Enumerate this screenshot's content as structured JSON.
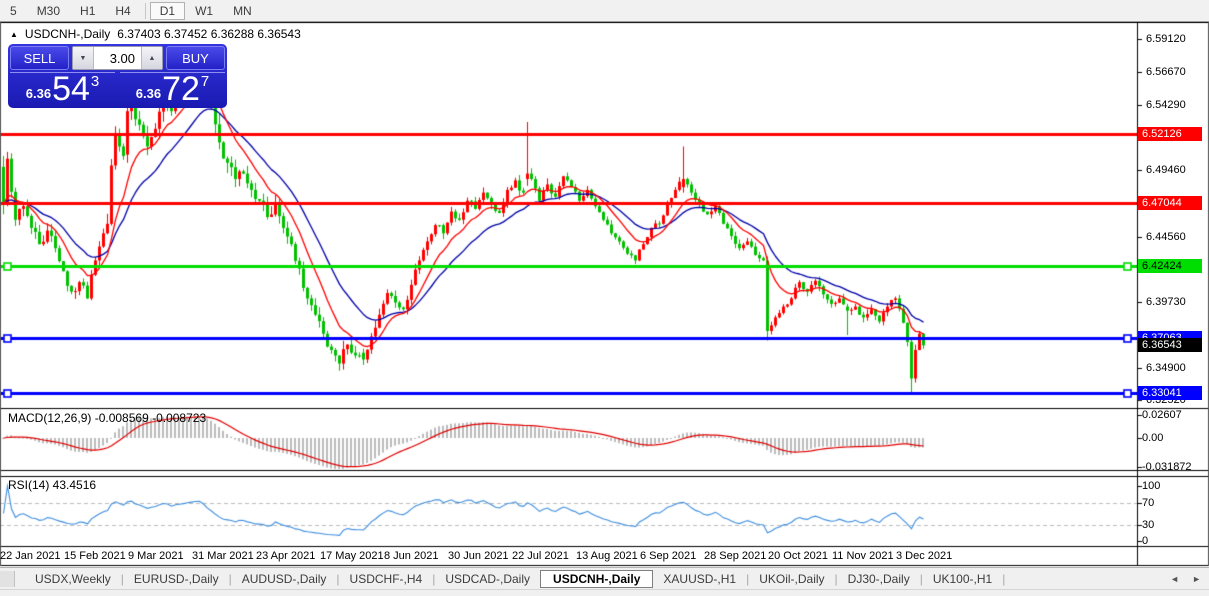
{
  "toolbar": {
    "groups": [
      [
        "5",
        "M30",
        "H1",
        "H4"
      ],
      [
        "D1",
        "W1",
        "MN"
      ]
    ],
    "active": "D1"
  },
  "chart": {
    "title": "USDCNH-,Daily",
    "ohlc_text": "6.37403 6.37452 6.36288 6.36543"
  },
  "icons": {
    "collapse": "▲",
    "spinner_down": "▼",
    "spinner_up": "▲",
    "tab_left": "◄",
    "tab_right": "►"
  },
  "trade_panel": {
    "sell_label": "SELL",
    "buy_label": "BUY",
    "volume": "3.00",
    "sell_price": {
      "prefix": "6.36",
      "big": "54",
      "sup": "3"
    },
    "buy_price": {
      "prefix": "6.36",
      "big": "72",
      "sup": "7"
    }
  },
  "indicators": {
    "macd_label": "MACD(12,26,9) -0.008569 -0.008723",
    "rsi_label": "RSI(14) 43.4516"
  },
  "tabs": {
    "items": [
      {
        "label": "USDX,Weekly",
        "active": false
      },
      {
        "label": "EURUSD-,Daily",
        "active": false
      },
      {
        "label": "AUDUSD-,Daily",
        "active": false
      },
      {
        "label": "USDCHF-,H4",
        "active": false
      },
      {
        "label": "USDCAD-,Daily",
        "active": false
      },
      {
        "label": "USDCNH-,Daily",
        "active": true
      },
      {
        "label": "XAUUSD-,H1",
        "active": false
      },
      {
        "label": "UKOil-,Daily",
        "active": false
      },
      {
        "label": "DJ30-,Daily",
        "active": false
      },
      {
        "label": "UK100-,H1",
        "active": false
      }
    ]
  },
  "chart_data": {
    "type": "candlestick",
    "symbol": "USDCNH-",
    "timeframe": "Daily",
    "current_ohlc": {
      "open": 6.37403,
      "high": 6.37452,
      "low": 6.36288,
      "close": 6.36543
    },
    "current_price": 6.36543,
    "bull_color": "#ff0000",
    "bear_color": "#00c000",
    "ma_fast_period": 10,
    "ma_slow_period": 21,
    "ma_fast_color": "#ff0000",
    "ma_slow_color": "#0000a8",
    "y_ticks": [
      "6.59120",
      "6.56670",
      "6.54290",
      "6.49460",
      "6.44560",
      "6.39730",
      "6.34900",
      "6.32520"
    ],
    "hlines": [
      {
        "price": 6.52126,
        "color": "#ff0000",
        "text_color": "#ffffff",
        "handles": false
      },
      {
        "price": 6.47044,
        "color": "#ff0000",
        "text_color": "#ffffff",
        "handles": false
      },
      {
        "price": 6.42424,
        "color": "#00dd00",
        "text_color": "#000000",
        "handles": true
      },
      {
        "price": 6.37063,
        "color": "#0000ff",
        "text_color": "#ffffff",
        "handles": true
      },
      {
        "price": 6.33041,
        "color": "#0000ff",
        "text_color": "#ffffff",
        "handles": true
      }
    ],
    "date_labels": [
      {
        "bar": 0,
        "text": "22 Jan 2021"
      },
      {
        "bar": 16,
        "text": "15 Feb 2021"
      },
      {
        "bar": 32,
        "text": "9 Mar 2021"
      },
      {
        "bar": 48,
        "text": "31 Mar 2021"
      },
      {
        "bar": 64,
        "text": "23 Apr 2021"
      },
      {
        "bar": 80,
        "text": "17 May 2021"
      },
      {
        "bar": 96,
        "text": "8 Jun 2021"
      },
      {
        "bar": 112,
        "text": "30 Jun 2021"
      },
      {
        "bar": 128,
        "text": "22 Jul 2021"
      },
      {
        "bar": 144,
        "text": "13 Aug 2021"
      },
      {
        "bar": 160,
        "text": "6 Sep 2021"
      },
      {
        "bar": 176,
        "text": "28 Sep 2021"
      },
      {
        "bar": 192,
        "text": "20 Oct 2021"
      },
      {
        "bar": 208,
        "text": "11 Nov 2021"
      },
      {
        "bar": 224,
        "text": "3 Dec 2021"
      }
    ],
    "bars_total": 231,
    "seed": 7,
    "close_anchors": [
      [
        0,
        6.469
      ],
      [
        1,
        6.503
      ],
      [
        3,
        6.458
      ],
      [
        5,
        6.468
      ],
      [
        7,
        6.452
      ],
      [
        9,
        6.44
      ],
      [
        11,
        6.45
      ],
      [
        13,
        6.437
      ],
      [
        15,
        6.42
      ],
      [
        17,
        6.405
      ],
      [
        19,
        6.412
      ],
      [
        21,
        6.4
      ],
      [
        23,
        6.428
      ],
      [
        25,
        6.448
      ],
      [
        26,
        6.455
      ],
      [
        27,
        6.498
      ],
      [
        28,
        6.52
      ],
      [
        29,
        6.512
      ],
      [
        30,
        6.505
      ],
      [
        31,
        6.538
      ],
      [
        32,
        6.545
      ],
      [
        33,
        6.532
      ],
      [
        34,
        6.528
      ],
      [
        36,
        6.512
      ],
      [
        38,
        6.525
      ],
      [
        40,
        6.548
      ],
      [
        42,
        6.538
      ],
      [
        44,
        6.552
      ],
      [
        46,
        6.562
      ],
      [
        48,
        6.572
      ],
      [
        50,
        6.565
      ],
      [
        52,
        6.542
      ],
      [
        54,
        6.515
      ],
      [
        56,
        6.5
      ],
      [
        58,
        6.488
      ],
      [
        60,
        6.492
      ],
      [
        62,
        6.48
      ],
      [
        64,
        6.472
      ],
      [
        66,
        6.46
      ],
      [
        68,
        6.47
      ],
      [
        70,
        6.452
      ],
      [
        72,
        6.44
      ],
      [
        74,
        6.422
      ],
      [
        76,
        6.4
      ],
      [
        78,
        6.388
      ],
      [
        80,
        6.374
      ],
      [
        82,
        6.362
      ],
      [
        84,
        6.352
      ],
      [
        86,
        6.366
      ],
      [
        88,
        6.358
      ],
      [
        90,
        6.355
      ],
      [
        92,
        6.372
      ],
      [
        94,
        6.388
      ],
      [
        96,
        6.404
      ],
      [
        98,
        6.397
      ],
      [
        100,
        6.392
      ],
      [
        102,
        6.41
      ],
      [
        104,
        6.428
      ],
      [
        106,
        6.442
      ],
      [
        108,
        6.454
      ],
      [
        110,
        6.448
      ],
      [
        112,
        6.464
      ],
      [
        114,
        6.458
      ],
      [
        116,
        6.472
      ],
      [
        118,
        6.466
      ],
      [
        120,
        6.478
      ],
      [
        122,
        6.47
      ],
      [
        124,
        6.463
      ],
      [
        126,
        6.48
      ],
      [
        128,
        6.487
      ],
      [
        130,
        6.478
      ],
      [
        131,
        6.492
      ],
      [
        132,
        6.488
      ],
      [
        134,
        6.472
      ],
      [
        136,
        6.484
      ],
      [
        138,
        6.475
      ],
      [
        140,
        6.49
      ],
      [
        142,
        6.482
      ],
      [
        144,
        6.472
      ],
      [
        146,
        6.48
      ],
      [
        148,
        6.468
      ],
      [
        150,
        6.458
      ],
      [
        152,
        6.448
      ],
      [
        154,
        6.442
      ],
      [
        156,
        6.433
      ],
      [
        158,
        6.428
      ],
      [
        160,
        6.44
      ],
      [
        162,
        6.452
      ],
      [
        164,
        6.455
      ],
      [
        166,
        6.47
      ],
      [
        168,
        6.48
      ],
      [
        170,
        6.488
      ],
      [
        172,
        6.478
      ],
      [
        174,
        6.47
      ],
      [
        176,
        6.462
      ],
      [
        178,
        6.468
      ],
      [
        180,
        6.455
      ],
      [
        182,
        6.446
      ],
      [
        184,
        6.437
      ],
      [
        186,
        6.442
      ],
      [
        188,
        6.432
      ],
      [
        190,
        6.428
      ],
      [
        191,
        6.376
      ],
      [
        193,
        6.386
      ],
      [
        195,
        6.394
      ],
      [
        197,
        6.4
      ],
      [
        199,
        6.412
      ],
      [
        201,
        6.405
      ],
      [
        203,
        6.413
      ],
      [
        205,
        6.403
      ],
      [
        207,
        6.396
      ],
      [
        209,
        6.4
      ],
      [
        211,
        6.391
      ],
      [
        213,
        6.394
      ],
      [
        215,
        6.386
      ],
      [
        217,
        6.392
      ],
      [
        219,
        6.383
      ],
      [
        221,
        6.394
      ],
      [
        223,
        6.4
      ],
      [
        225,
        6.382
      ],
      [
        226,
        6.368
      ],
      [
        227,
        6.341
      ],
      [
        228,
        6.362
      ],
      [
        229,
        6.374
      ],
      [
        230,
        6.36543
      ]
    ],
    "specials": [
      {
        "b": 0,
        "o": 6.497,
        "h": 6.505,
        "l": 6.462,
        "c": 6.469
      },
      {
        "b": 1,
        "o": 6.47,
        "h": 6.508,
        "l": 6.468,
        "c": 6.503
      },
      {
        "b": 31,
        "o": 6.506,
        "h": 6.553,
        "l": 6.5,
        "c": 6.538
      },
      {
        "b": 48,
        "o": 6.563,
        "h": 6.578,
        "l": 6.558,
        "c": 6.572
      },
      {
        "b": 90,
        "o": 6.36,
        "h": 6.363,
        "l": 6.351,
        "c": 6.355
      },
      {
        "b": 131,
        "o": 6.488,
        "h": 6.53,
        "l": 6.483,
        "c": 6.492
      },
      {
        "b": 170,
        "o": 6.482,
        "h": 6.512,
        "l": 6.478,
        "c": 6.488
      },
      {
        "b": 191,
        "o": 6.428,
        "h": 6.431,
        "l": 6.369,
        "c": 6.376
      },
      {
        "b": 211,
        "o": 6.394,
        "h": 6.396,
        "l": 6.373,
        "c": 6.391
      },
      {
        "b": 227,
        "o": 6.368,
        "h": 6.371,
        "l": 6.329,
        "c": 6.341
      },
      {
        "b": 228,
        "o": 6.341,
        "h": 6.366,
        "l": 6.338,
        "c": 6.362
      },
      {
        "b": 230,
        "o": 6.37403,
        "h": 6.37452,
        "l": 6.36288,
        "c": 6.36543
      }
    ],
    "volatility_zones": [
      {
        "to": 25,
        "v": 1.2
      },
      {
        "to": 60,
        "v": 1.8
      },
      {
        "to": 95,
        "v": 1.4
      },
      {
        "to": 140,
        "v": 1.0
      },
      {
        "to": 190,
        "v": 0.75
      },
      {
        "to": 231,
        "v": 0.85
      }
    ],
    "macd": {
      "fast": 12,
      "slow": 26,
      "signal": 9,
      "hist_color": "#bcbcbc",
      "signal_color": "#e00000",
      "axis": [
        {
          "text": "0.02607",
          "value": 0.02607
        },
        {
          "text": "0.00",
          "value": 0
        },
        {
          "text": "-0.031872",
          "value": -0.031872
        }
      ]
    },
    "rsi": {
      "period": 14,
      "value": 43.4516,
      "color": "#3e8ede",
      "axis": [
        100,
        70,
        30,
        0
      ],
      "levels": [
        70,
        30
      ]
    }
  }
}
